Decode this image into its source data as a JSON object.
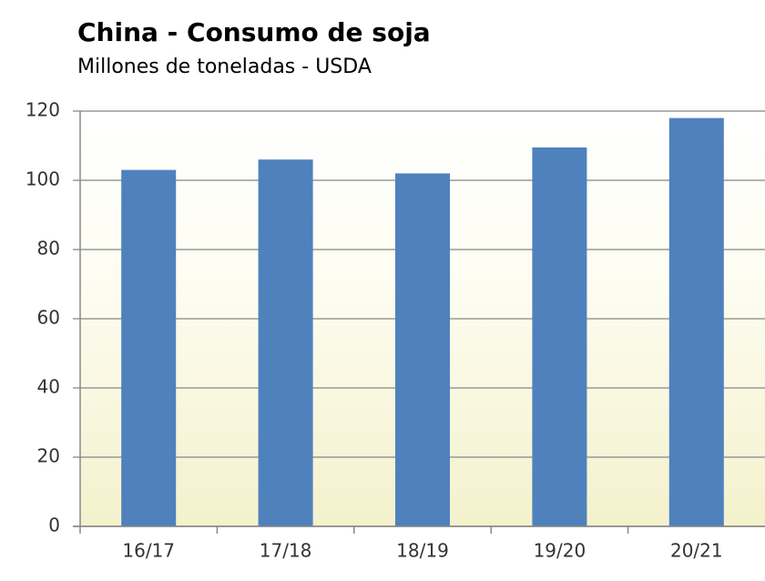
{
  "chart_data": {
    "type": "bar",
    "title": "China - Consumo de soja",
    "subtitle": "Millones de toneladas - USDA",
    "categories": [
      "16/17",
      "17/18",
      "18/19",
      "19/20",
      "20/21"
    ],
    "values": [
      103,
      106,
      102,
      109.5,
      118
    ],
    "color": "#4f81bd",
    "ylim": [
      0,
      120
    ],
    "yticks": [
      0,
      20,
      40,
      60,
      80,
      100,
      120
    ],
    "grid": true
  }
}
